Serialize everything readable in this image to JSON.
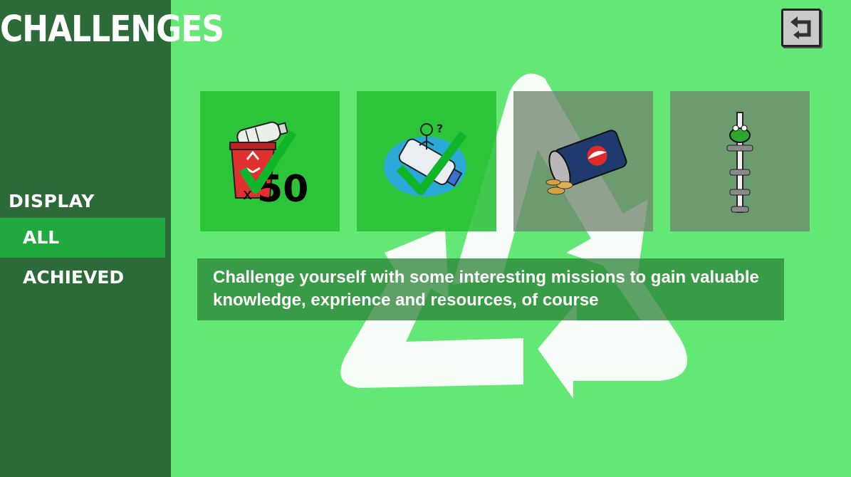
{
  "sidebar": {
    "title": "CHALLENGES",
    "display_label": "DISPLAY",
    "filters": [
      {
        "label": "ALL",
        "selected": true
      },
      {
        "label": "ACHIEVED",
        "selected": false
      }
    ]
  },
  "top_bar": {
    "back_icon": "return-arrow-icon"
  },
  "challenges": [
    {
      "icon": "recycle-bin-bottles-icon",
      "status": "achieved",
      "overlay_text": "x50"
    },
    {
      "icon": "bottle-on-water-icon",
      "status": "achieved"
    },
    {
      "icon": "soda-can-coins-icon",
      "status": "locked"
    },
    {
      "icon": "frog-on-pole-icon",
      "status": "locked"
    }
  ],
  "description": "Challenge yourself with some interesting missions to gain valuable knowledge, exprience and resources, of course",
  "colors": {
    "background": "#63e876",
    "sidebar": "#2c6a3a",
    "selected_filter": "#20a93e",
    "achieved_card": "#22be30",
    "locked_card": "#6e826e",
    "checkmark": "#11b52a"
  }
}
